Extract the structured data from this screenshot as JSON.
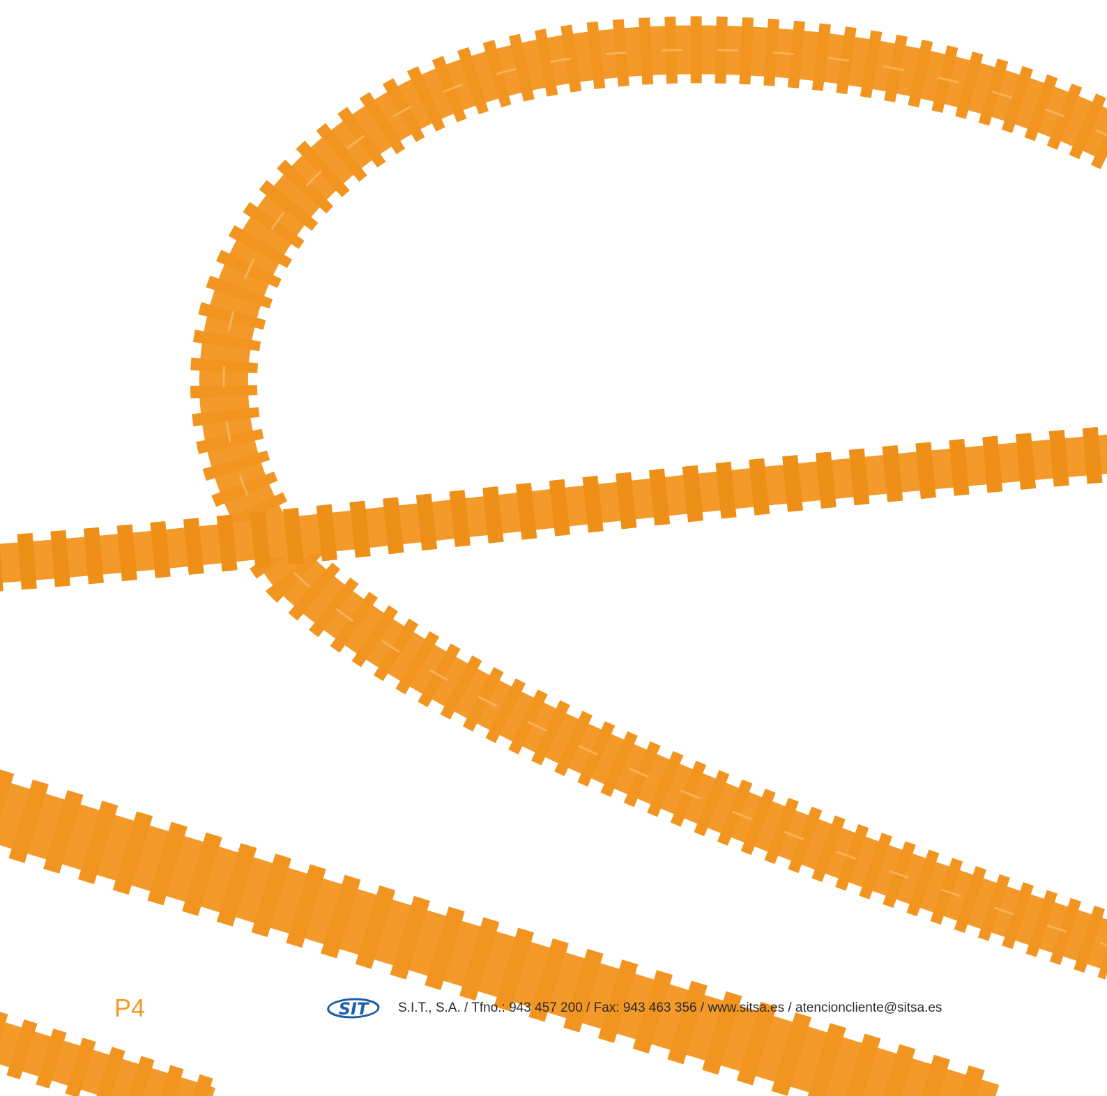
{
  "page_number": "P4",
  "footer": {
    "logo": "SIT",
    "text": "S.I.T., S.A. / Tfno.: 943 457 200 / Fax: 943 463 356 / www.sitsa.es / atencioncliente@sitsa.es"
  }
}
